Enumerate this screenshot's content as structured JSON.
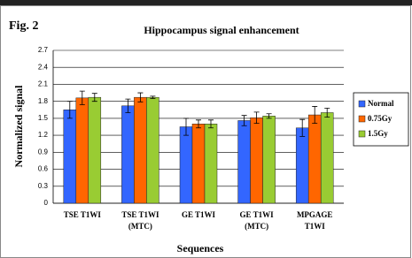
{
  "chart_data": {
    "type": "bar",
    "label": "Fig. 2",
    "title": "Hippocampus signal enhancement",
    "x_label": "Sequences",
    "y_label": "Normalized signal",
    "categories": [
      [
        "TSE T1WI"
      ],
      [
        "TSE T1WI",
        "(MTC)"
      ],
      [
        "GE T1WI"
      ],
      [
        "GE T1WI",
        "(MTC)"
      ],
      [
        "MPGAGE",
        "T1WI"
      ]
    ],
    "series": [
      {
        "name": "Normal",
        "color": "#3366ff",
        "values": [
          1.65,
          1.72,
          1.35,
          1.46,
          1.33
        ],
        "errors": [
          0.15,
          0.12,
          0.15,
          0.09,
          0.15
        ]
      },
      {
        "name": "0.75Gy",
        "color": "#ff6600",
        "values": [
          1.86,
          1.87,
          1.4,
          1.51,
          1.56
        ],
        "errors": [
          0.12,
          0.08,
          0.07,
          0.1,
          0.15
        ]
      },
      {
        "name": "1.5Gy",
        "color": "#99cc33",
        "values": [
          1.87,
          1.87,
          1.4,
          1.54,
          1.6
        ],
        "errors": [
          0.07,
          0.02,
          0.07,
          0.04,
          0.08
        ]
      }
    ],
    "ylim": [
      0,
      2.7
    ],
    "yticks": [
      0,
      0.3,
      0.6,
      0.9,
      1.2,
      1.5,
      1.8,
      2.1,
      2.4,
      2.7
    ],
    "grid": true,
    "legend": "right"
  }
}
